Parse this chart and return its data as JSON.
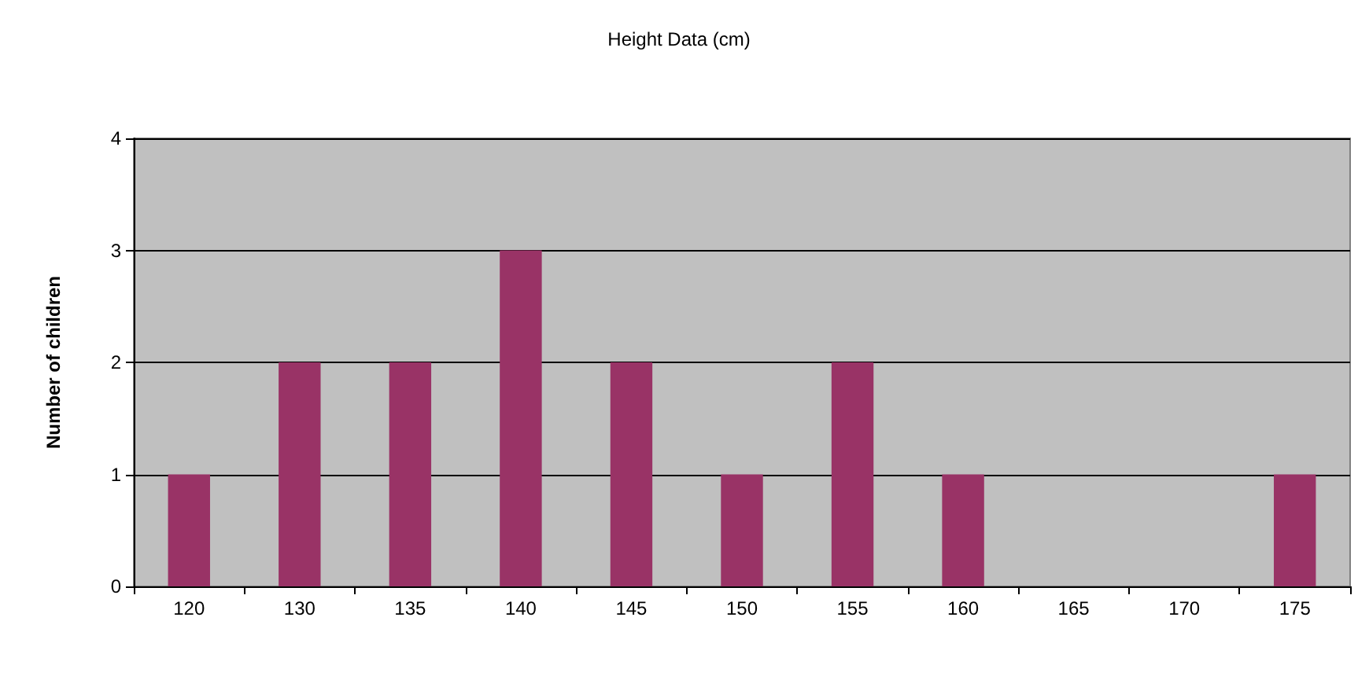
{
  "chart_data": {
    "type": "bar",
    "title": "Height Data (cm)",
    "ylabel": "Number of children",
    "categories": [
      "120",
      "130",
      "135",
      "140",
      "145",
      "150",
      "155",
      "160",
      "165",
      "170",
      "175"
    ],
    "values": [
      1,
      2,
      2,
      3,
      2,
      1,
      2,
      1,
      0,
      0,
      1
    ],
    "color": "#993366",
    "ylim": [
      0,
      4
    ],
    "yticks": [
      0,
      1,
      2,
      3,
      4
    ],
    "grid": "y"
  }
}
